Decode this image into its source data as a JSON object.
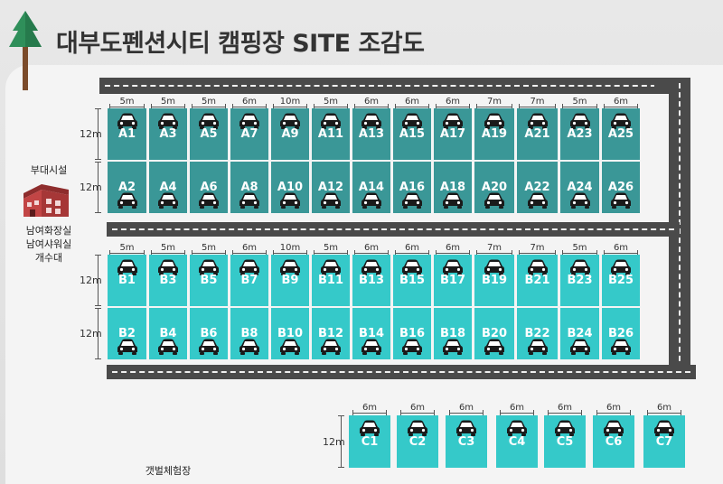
{
  "title": "대부도펜션시티 캠핑장 SITE 조감도",
  "facility": {
    "heading": "부대시설",
    "lines": [
      "남여화장실",
      "남여샤워실",
      "개수대"
    ],
    "icon": "building-icon"
  },
  "mudflat_label": "갯벌체험장",
  "colors": {
    "row_a": "#3a9797",
    "row_b": "#35c9c9",
    "row_c": "#35c9c9",
    "road": "#4a4a4a",
    "tree": "#2f8f5a",
    "building": "#b33b3b"
  },
  "row_a": {
    "top": [
      "A1",
      "A3",
      "A5",
      "A7",
      "A9",
      "A11",
      "A13",
      "A15",
      "A17",
      "A19",
      "A21",
      "A23",
      "A25"
    ],
    "bottom": [
      "A2",
      "A4",
      "A6",
      "A8",
      "A10",
      "A12",
      "A14",
      "A16",
      "A18",
      "A20",
      "A22",
      "A24",
      "A26"
    ],
    "widths": [
      "5m",
      "5m",
      "5m",
      "6m",
      "10m",
      "5m",
      "6m",
      "6m",
      "6m",
      "7m",
      "7m",
      "5m",
      "6m"
    ],
    "height": "12m"
  },
  "row_b": {
    "top": [
      "B1",
      "B3",
      "B5",
      "B7",
      "B9",
      "B11",
      "B13",
      "B15",
      "B17",
      "B19",
      "B21",
      "B23",
      "B25"
    ],
    "bottom": [
      "B2",
      "B4",
      "B6",
      "B8",
      "B10",
      "B12",
      "B14",
      "B16",
      "B18",
      "B20",
      "B22",
      "B24",
      "B26"
    ],
    "widths": [
      "5m",
      "5m",
      "5m",
      "6m",
      "10m",
      "5m",
      "6m",
      "6m",
      "6m",
      "7m",
      "7m",
      "5m",
      "6m"
    ],
    "height": "12m"
  },
  "row_c": {
    "sites": [
      "C1",
      "C2",
      "C3",
      "C4",
      "C5",
      "C6",
      "C7"
    ],
    "widths": [
      "6m",
      "6m",
      "6m",
      "6m",
      "6m",
      "6m",
      "6m"
    ],
    "height": "12m"
  }
}
